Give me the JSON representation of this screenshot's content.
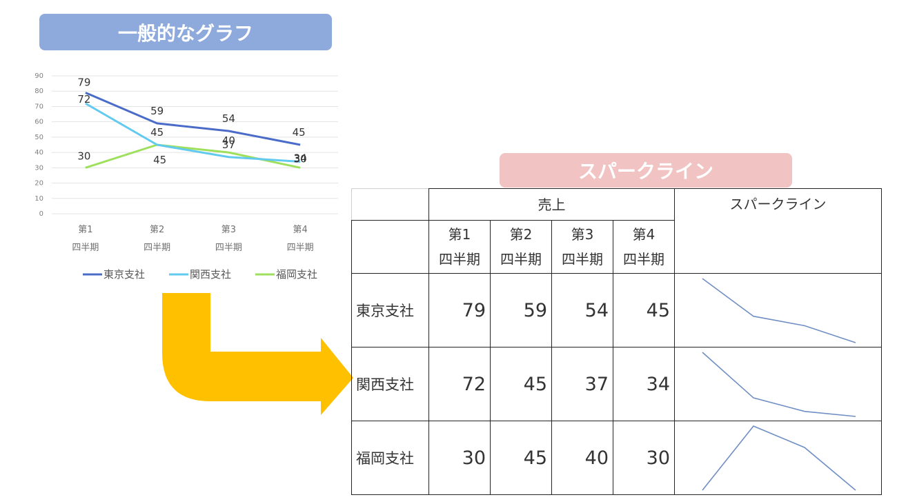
{
  "banners": {
    "general_chart": {
      "text": "一般的なグラフ",
      "color": "#8eaadc"
    },
    "sparkline": {
      "text": "スパークライン",
      "color": "#f1c3c3"
    }
  },
  "chart_data": {
    "type": "line",
    "categories": [
      [
        "第1",
        "四半期"
      ],
      [
        "第2",
        "四半期"
      ],
      [
        "第3",
        "四半期"
      ],
      [
        "第4",
        "四半期"
      ]
    ],
    "series": [
      {
        "name": "東京支社",
        "values": [
          79,
          59,
          54,
          45
        ],
        "color": "#4a6cc8"
      },
      {
        "name": "関西支社",
        "values": [
          72,
          45,
          37,
          34
        ],
        "color": "#62c9ef"
      },
      {
        "name": "福岡支社",
        "values": [
          30,
          45,
          40,
          30
        ],
        "color": "#9ee05c"
      }
    ],
    "ylim": [
      0,
      90
    ],
    "yticks": [
      0,
      10,
      20,
      30,
      40,
      50,
      60,
      70,
      80,
      90
    ],
    "grid": true,
    "data_labels": true,
    "legend": "bottom"
  },
  "table": {
    "group_header": "売上",
    "sparkline_header": "スパークライン",
    "quarter_headers": [
      [
        "第1",
        "四半期"
      ],
      [
        "第2",
        "四半期"
      ],
      [
        "第3",
        "四半期"
      ],
      [
        "第4",
        "四半期"
      ]
    ],
    "rows": [
      {
        "branch": "東京支社",
        "values": [
          79,
          59,
          54,
          45
        ]
      },
      {
        "branch": "関西支社",
        "values": [
          72,
          45,
          37,
          34
        ]
      },
      {
        "branch": "福岡支社",
        "values": [
          30,
          45,
          40,
          30
        ]
      }
    ],
    "sparkline_color": "#6f8ec4"
  },
  "arrow_color": "#ffc000"
}
